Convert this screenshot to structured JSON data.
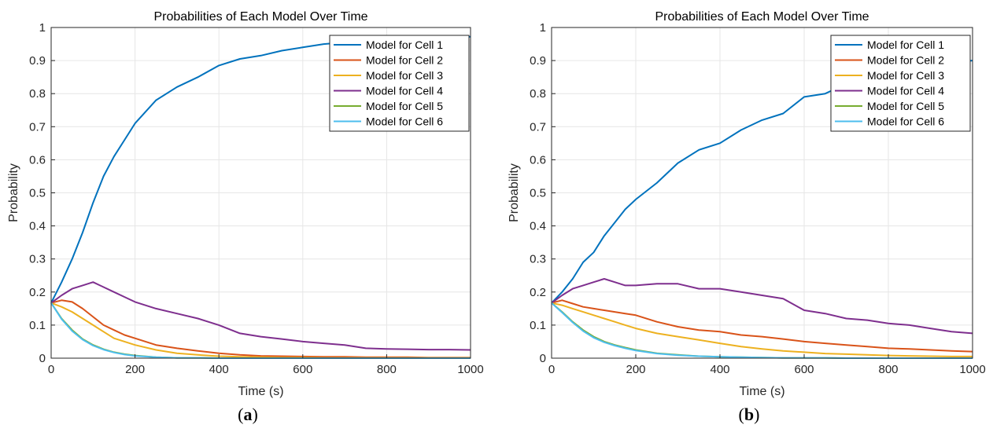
{
  "series_colors": [
    "#0072BD",
    "#D95319",
    "#EDB120",
    "#7E2F8E",
    "#77AC30",
    "#4DBEEE"
  ],
  "chart_data": [
    {
      "type": "line",
      "panel_label": "a",
      "title": "Probabilities of Each Model Over Time",
      "xlabel": "Time (s)",
      "ylabel": "Probability",
      "xlim": [
        0,
        1000
      ],
      "ylim": [
        0,
        1
      ],
      "xticks": [
        0,
        200,
        400,
        600,
        800,
        1000
      ],
      "yticks": [
        0,
        0.1,
        0.2,
        0.3,
        0.4,
        0.5,
        0.6,
        0.7,
        0.8,
        0.9,
        1
      ],
      "grid": true,
      "legend_position": "top-right",
      "x": [
        0,
        25,
        50,
        75,
        100,
        125,
        150,
        175,
        200,
        250,
        300,
        350,
        400,
        450,
        500,
        550,
        600,
        650,
        700,
        750,
        800,
        850,
        900,
        950,
        1000
      ],
      "series": [
        {
          "name": "Model for Cell 1",
          "values": [
            0.167,
            0.23,
            0.3,
            0.38,
            0.47,
            0.55,
            0.61,
            0.66,
            0.71,
            0.78,
            0.82,
            0.85,
            0.885,
            0.905,
            0.915,
            0.93,
            0.94,
            0.95,
            0.955,
            0.96,
            0.965,
            0.968,
            0.97,
            0.97,
            0.972
          ]
        },
        {
          "name": "Model for Cell 2",
          "values": [
            0.167,
            0.175,
            0.17,
            0.15,
            0.125,
            0.1,
            0.085,
            0.07,
            0.06,
            0.04,
            0.03,
            0.022,
            0.015,
            0.01,
            0.007,
            0.006,
            0.005,
            0.004,
            0.004,
            0.003,
            0.003,
            0.003,
            0.002,
            0.002,
            0.002
          ]
        },
        {
          "name": "Model for Cell 3",
          "values": [
            0.167,
            0.155,
            0.14,
            0.12,
            0.1,
            0.08,
            0.06,
            0.05,
            0.04,
            0.025,
            0.015,
            0.01,
            0.006,
            0.004,
            0.003,
            0.002,
            0.002,
            0.001,
            0.001,
            0.001,
            0.001,
            0.001,
            0.001,
            0.001,
            0.001
          ]
        },
        {
          "name": "Model for Cell 4",
          "values": [
            0.167,
            0.19,
            0.21,
            0.22,
            0.23,
            0.215,
            0.2,
            0.185,
            0.17,
            0.15,
            0.135,
            0.12,
            0.1,
            0.075,
            0.065,
            0.058,
            0.05,
            0.045,
            0.04,
            0.03,
            0.028,
            0.027,
            0.026,
            0.026,
            0.025
          ]
        },
        {
          "name": "Model for Cell 5",
          "values": [
            0.167,
            0.12,
            0.085,
            0.058,
            0.04,
            0.027,
            0.018,
            0.012,
            0.008,
            0.003,
            0.001,
            0.001,
            0,
            0,
            0,
            0,
            0,
            0,
            0,
            0,
            0,
            0,
            0,
            0,
            0
          ]
        },
        {
          "name": "Model for Cell 6",
          "values": [
            0.167,
            0.118,
            0.082,
            0.056,
            0.038,
            0.026,
            0.017,
            0.011,
            0.007,
            0.003,
            0.001,
            0.001,
            0,
            0,
            0,
            0,
            0,
            0,
            0,
            0,
            0,
            0,
            0,
            0,
            0
          ]
        }
      ]
    },
    {
      "type": "line",
      "panel_label": "b",
      "title": "Probabilities of Each Model Over Time",
      "xlabel": "Time (s)",
      "ylabel": "Probability",
      "xlim": [
        0,
        1000
      ],
      "ylim": [
        0,
        1
      ],
      "xticks": [
        0,
        200,
        400,
        600,
        800,
        1000
      ],
      "yticks": [
        0,
        0.1,
        0.2,
        0.3,
        0.4,
        0.5,
        0.6,
        0.7,
        0.8,
        0.9,
        1
      ],
      "grid": true,
      "legend_position": "top-right",
      "x": [
        0,
        25,
        50,
        75,
        100,
        125,
        150,
        175,
        200,
        250,
        300,
        350,
        400,
        450,
        500,
        550,
        600,
        650,
        700,
        750,
        800,
        850,
        900,
        950,
        1000
      ],
      "series": [
        {
          "name": "Model for Cell 1",
          "values": [
            0.167,
            0.2,
            0.24,
            0.29,
            0.32,
            0.37,
            0.41,
            0.45,
            0.48,
            0.53,
            0.59,
            0.63,
            0.65,
            0.69,
            0.72,
            0.74,
            0.79,
            0.8,
            0.83,
            0.85,
            0.86,
            0.87,
            0.89,
            0.895,
            0.9
          ]
        },
        {
          "name": "Model for Cell 2",
          "values": [
            0.167,
            0.175,
            0.165,
            0.155,
            0.15,
            0.145,
            0.14,
            0.135,
            0.13,
            0.11,
            0.095,
            0.085,
            0.08,
            0.07,
            0.065,
            0.058,
            0.05,
            0.045,
            0.04,
            0.035,
            0.03,
            0.028,
            0.025,
            0.022,
            0.02
          ]
        },
        {
          "name": "Model for Cell 3",
          "values": [
            0.167,
            0.16,
            0.15,
            0.14,
            0.13,
            0.12,
            0.11,
            0.1,
            0.09,
            0.075,
            0.065,
            0.055,
            0.045,
            0.035,
            0.028,
            0.022,
            0.018,
            0.014,
            0.012,
            0.01,
            0.008,
            0.007,
            0.006,
            0.005,
            0.005
          ]
        },
        {
          "name": "Model for Cell 4",
          "values": [
            0.167,
            0.19,
            0.21,
            0.22,
            0.23,
            0.24,
            0.23,
            0.22,
            0.22,
            0.225,
            0.225,
            0.21,
            0.21,
            0.2,
            0.19,
            0.18,
            0.145,
            0.135,
            0.12,
            0.115,
            0.105,
            0.1,
            0.09,
            0.08,
            0.075
          ]
        },
        {
          "name": "Model for Cell 5",
          "values": [
            0.167,
            0.14,
            0.11,
            0.085,
            0.065,
            0.05,
            0.04,
            0.032,
            0.025,
            0.015,
            0.01,
            0.006,
            0.004,
            0.003,
            0.002,
            0.001,
            0.001,
            0.001,
            0,
            0,
            0,
            0,
            0,
            0,
            0
          ]
        },
        {
          "name": "Model for Cell 6",
          "values": [
            0.167,
            0.138,
            0.108,
            0.082,
            0.062,
            0.048,
            0.038,
            0.03,
            0.023,
            0.014,
            0.009,
            0.006,
            0.004,
            0.003,
            0.002,
            0.001,
            0.001,
            0.001,
            0,
            0,
            0,
            0,
            0,
            0,
            0
          ]
        }
      ]
    }
  ]
}
